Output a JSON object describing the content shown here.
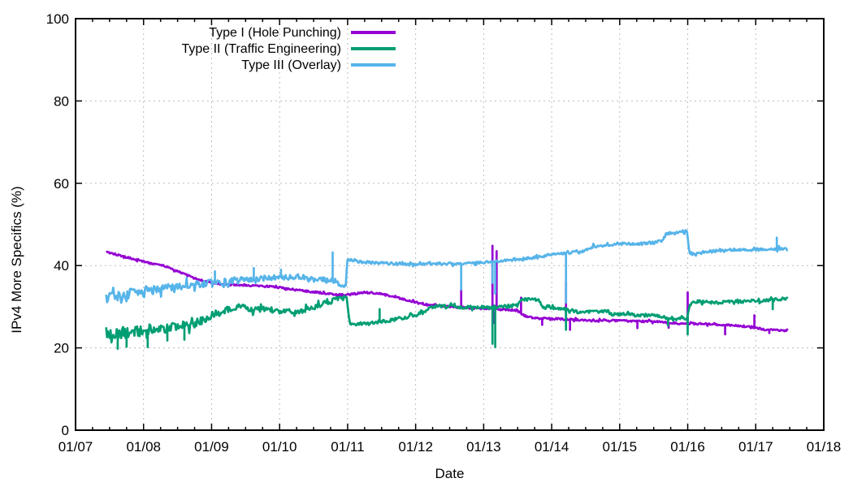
{
  "chart_data": {
    "type": "line",
    "title": "",
    "xlabel": "Date",
    "ylabel": "IPv4 More Specifics (%)",
    "xlim": [
      2007,
      2018
    ],
    "ylim": [
      0,
      100
    ],
    "grid": true,
    "legend_position": "top-center",
    "x_ticks": [
      {
        "t": 2007,
        "label": "01/07"
      },
      {
        "t": 2008,
        "label": "01/08"
      },
      {
        "t": 2009,
        "label": "01/09"
      },
      {
        "t": 2010,
        "label": "01/10"
      },
      {
        "t": 2011,
        "label": "01/11"
      },
      {
        "t": 2012,
        "label": "01/12"
      },
      {
        "t": 2013,
        "label": "01/13"
      },
      {
        "t": 2014,
        "label": "01/14"
      },
      {
        "t": 2015,
        "label": "01/15"
      },
      {
        "t": 2016,
        "label": "01/16"
      },
      {
        "t": 2017,
        "label": "01/17"
      },
      {
        "t": 2018,
        "label": "01/18"
      }
    ],
    "y_ticks": [
      0,
      20,
      40,
      60,
      80,
      100
    ],
    "colors": {
      "axis": "#000000",
      "grid": "#bbbbbb",
      "background": "#ffffff"
    },
    "series": [
      {
        "name": "Type I (Hole Punching)",
        "color": "#9400d3",
        "trend": [
          [
            2007.45,
            43.4
          ],
          [
            2007.55,
            43.0
          ],
          [
            2007.7,
            42.2
          ],
          [
            2007.85,
            41.6
          ],
          [
            2008.0,
            41.0
          ],
          [
            2008.1,
            40.6
          ],
          [
            2008.25,
            40.2
          ],
          [
            2008.4,
            39.3
          ],
          [
            2008.5,
            38.7
          ],
          [
            2008.65,
            37.6
          ],
          [
            2008.8,
            36.6
          ],
          [
            2009.0,
            35.8
          ],
          [
            2009.2,
            35.4
          ],
          [
            2009.4,
            35.3
          ],
          [
            2009.6,
            35.2
          ],
          [
            2009.8,
            35.0
          ],
          [
            2010.0,
            34.7
          ],
          [
            2010.2,
            34.2
          ],
          [
            2010.45,
            33.7
          ],
          [
            2010.7,
            33.2
          ],
          [
            2010.9,
            32.9
          ],
          [
            2011.05,
            33.0
          ],
          [
            2011.25,
            33.5
          ],
          [
            2011.45,
            33.2
          ],
          [
            2011.7,
            32.4
          ],
          [
            2011.9,
            31.5
          ],
          [
            2012.1,
            30.6
          ],
          [
            2012.3,
            30.2
          ],
          [
            2012.55,
            30.0
          ],
          [
            2012.8,
            29.7
          ],
          [
            2013.0,
            29.6
          ],
          [
            2013.3,
            29.4
          ],
          [
            2013.5,
            29.0
          ],
          [
            2013.6,
            27.8
          ],
          [
            2013.75,
            27.2
          ],
          [
            2014.0,
            27.1
          ],
          [
            2014.3,
            26.9
          ],
          [
            2014.6,
            26.6
          ],
          [
            2014.9,
            26.7
          ],
          [
            2015.2,
            26.5
          ],
          [
            2015.5,
            26.4
          ],
          [
            2015.8,
            26.0
          ],
          [
            2016.0,
            25.9
          ],
          [
            2016.3,
            25.8
          ],
          [
            2016.6,
            25.5
          ],
          [
            2016.9,
            25.2
          ],
          [
            2017.0,
            24.9
          ],
          [
            2017.15,
            24.4
          ],
          [
            2017.3,
            24.3
          ],
          [
            2017.48,
            24.2
          ]
        ],
        "noise": [
          [
            2007.45,
            2017.5,
            0.22
          ]
        ],
        "spikes": [
          [
            2012.67,
            34.3
          ],
          [
            2013.13,
            44.8
          ],
          [
            2013.16,
            26.0
          ],
          [
            2013.19,
            43.5
          ],
          [
            2013.55,
            32.2
          ],
          [
            2013.86,
            25.6
          ],
          [
            2014.21,
            36.0
          ],
          [
            2014.27,
            24.4
          ],
          [
            2015.26,
            24.8
          ],
          [
            2015.72,
            24.9
          ],
          [
            2016.0,
            33.5
          ],
          [
            2016.55,
            23.3
          ],
          [
            2016.98,
            27.9
          ],
          [
            2017.2,
            23.6
          ]
        ]
      },
      {
        "name": "Type II (Traffic Engineering)",
        "color": "#009e73",
        "trend": [
          [
            2007.45,
            23.8
          ],
          [
            2007.6,
            23.4
          ],
          [
            2007.8,
            23.6
          ],
          [
            2008.0,
            24.2
          ],
          [
            2008.2,
            24.8
          ],
          [
            2008.45,
            25.2
          ],
          [
            2008.7,
            25.6
          ],
          [
            2008.9,
            26.8
          ],
          [
            2009.1,
            28.2
          ],
          [
            2009.3,
            29.6
          ],
          [
            2009.45,
            30.2
          ],
          [
            2009.6,
            29.2
          ],
          [
            2009.75,
            29.6
          ],
          [
            2009.9,
            29.0
          ],
          [
            2010.1,
            28.8
          ],
          [
            2010.3,
            28.9
          ],
          [
            2010.5,
            29.8
          ],
          [
            2010.65,
            30.8
          ],
          [
            2010.8,
            31.5
          ],
          [
            2010.93,
            32.2
          ],
          [
            2010.99,
            31.8
          ],
          [
            2011.03,
            25.8
          ],
          [
            2011.2,
            25.9
          ],
          [
            2011.4,
            26.2
          ],
          [
            2011.6,
            26.6
          ],
          [
            2011.8,
            27.3
          ],
          [
            2012.0,
            27.9
          ],
          [
            2012.15,
            29.3
          ],
          [
            2012.3,
            30.2
          ],
          [
            2012.5,
            30.1
          ],
          [
            2012.7,
            29.8
          ],
          [
            2012.9,
            30.0
          ],
          [
            2013.1,
            29.9
          ],
          [
            2013.3,
            30.2
          ],
          [
            2013.5,
            30.3
          ],
          [
            2013.56,
            31.8
          ],
          [
            2013.8,
            31.7
          ],
          [
            2013.87,
            29.8
          ],
          [
            2014.0,
            29.7
          ],
          [
            2014.2,
            29.4
          ],
          [
            2014.4,
            28.7
          ],
          [
            2014.6,
            28.8
          ],
          [
            2014.82,
            28.9
          ],
          [
            2014.87,
            28.2
          ],
          [
            2015.1,
            28.3
          ],
          [
            2015.3,
            27.8
          ],
          [
            2015.5,
            28.1
          ],
          [
            2015.7,
            27.2
          ],
          [
            2015.9,
            27.3
          ],
          [
            2015.99,
            27.0
          ],
          [
            2016.03,
            30.6
          ],
          [
            2016.15,
            31.4
          ],
          [
            2016.4,
            31.0
          ],
          [
            2016.7,
            31.2
          ],
          [
            2017.0,
            31.4
          ],
          [
            2017.2,
            31.5
          ],
          [
            2017.35,
            31.9
          ],
          [
            2017.48,
            32.0
          ]
        ],
        "noise": [
          [
            2007.45,
            2008.1,
            1.35
          ],
          [
            2008.1,
            2008.9,
            1.0
          ],
          [
            2008.9,
            2010.99,
            0.6
          ],
          [
            2011.0,
            2013.5,
            0.4
          ],
          [
            2013.5,
            2016.0,
            0.35
          ],
          [
            2016.0,
            2017.5,
            0.4
          ]
        ],
        "spikes": [
          [
            2007.62,
            19.8
          ],
          [
            2007.75,
            20.3
          ],
          [
            2008.06,
            20.2
          ],
          [
            2008.35,
            21.8
          ],
          [
            2008.6,
            22.0
          ],
          [
            2011.47,
            29.4
          ],
          [
            2013.13,
            21.0
          ],
          [
            2013.17,
            20.2
          ],
          [
            2014.21,
            24.4
          ],
          [
            2015.71,
            25.4
          ],
          [
            2016.0,
            23.3
          ],
          [
            2017.25,
            29.4
          ]
        ]
      },
      {
        "name": "Type III (Overlay)",
        "color": "#56b4e9",
        "trend": [
          [
            2007.45,
            32.0
          ],
          [
            2007.6,
            32.6
          ],
          [
            2007.8,
            33.2
          ],
          [
            2008.0,
            33.8
          ],
          [
            2008.2,
            34.2
          ],
          [
            2008.4,
            34.8
          ],
          [
            2008.6,
            35.2
          ],
          [
            2008.8,
            35.3
          ],
          [
            2009.0,
            35.7
          ],
          [
            2009.2,
            36.0
          ],
          [
            2009.4,
            36.4
          ],
          [
            2009.6,
            36.7
          ],
          [
            2009.8,
            37.0
          ],
          [
            2010.0,
            37.2
          ],
          [
            2010.2,
            37.1
          ],
          [
            2010.4,
            36.8
          ],
          [
            2010.6,
            36.5
          ],
          [
            2010.78,
            36.4
          ],
          [
            2010.9,
            35.6
          ],
          [
            2010.97,
            35.0
          ],
          [
            2011.0,
            41.6
          ],
          [
            2011.15,
            41.0
          ],
          [
            2011.35,
            40.7
          ],
          [
            2011.6,
            40.5
          ],
          [
            2011.85,
            40.3
          ],
          [
            2012.1,
            40.3
          ],
          [
            2012.4,
            40.4
          ],
          [
            2012.7,
            40.5
          ],
          [
            2012.9,
            40.7
          ],
          [
            2013.1,
            40.9
          ],
          [
            2013.35,
            41.3
          ],
          [
            2013.6,
            41.7
          ],
          [
            2013.85,
            42.2
          ],
          [
            2014.0,
            42.7
          ],
          [
            2014.2,
            43.0
          ],
          [
            2014.45,
            43.4
          ],
          [
            2014.6,
            44.6
          ],
          [
            2014.75,
            44.9
          ],
          [
            2014.9,
            45.2
          ],
          [
            2015.1,
            45.4
          ],
          [
            2015.3,
            45.3
          ],
          [
            2015.5,
            45.6
          ],
          [
            2015.62,
            45.9
          ],
          [
            2015.68,
            47.6
          ],
          [
            2015.8,
            48.0
          ],
          [
            2015.95,
            48.3
          ],
          [
            2015.99,
            48.5
          ],
          [
            2016.02,
            43.2
          ],
          [
            2016.1,
            42.6
          ],
          [
            2016.25,
            43.4
          ],
          [
            2016.5,
            43.8
          ],
          [
            2016.75,
            43.8
          ],
          [
            2017.0,
            43.9
          ],
          [
            2017.2,
            44.0
          ],
          [
            2017.35,
            44.1
          ],
          [
            2017.48,
            44.0
          ]
        ],
        "noise": [
          [
            2007.45,
            2008.3,
            1.25
          ],
          [
            2008.3,
            2009.5,
            0.9
          ],
          [
            2009.5,
            2010.99,
            0.65
          ],
          [
            2011.0,
            2014.5,
            0.3
          ],
          [
            2014.5,
            2016.0,
            0.35
          ],
          [
            2016.0,
            2017.5,
            0.35
          ]
        ],
        "spikes": [
          [
            2009.05,
            38.6
          ],
          [
            2009.62,
            39.4
          ],
          [
            2010.02,
            39.0
          ],
          [
            2010.78,
            43.2
          ],
          [
            2012.67,
            34.2
          ],
          [
            2013.13,
            35.8
          ],
          [
            2013.17,
            33.2
          ],
          [
            2014.21,
            31.0
          ],
          [
            2017.31,
            46.8
          ]
        ]
      }
    ]
  }
}
